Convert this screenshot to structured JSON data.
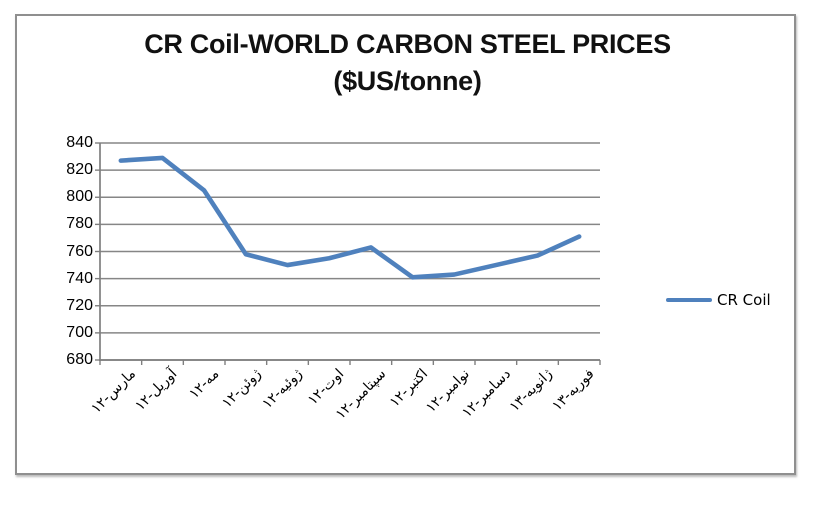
{
  "title": {
    "line1": "CR Coil-WORLD CARBON STEEL PRICES",
    "line2": "($US/tonne)"
  },
  "legend": {
    "label": "CR Coil"
  },
  "colors": {
    "series": "#4f81bd",
    "grid": "#868686",
    "axis": "#7f7f7f",
    "text": "#000000",
    "frame_border": "#8f8f8f"
  },
  "chart_data": {
    "type": "line",
    "title": "CR Coil-WORLD CARBON STEEL PRICES ($US/tonne)",
    "categories": [
      "مارس-۱۲",
      "آوریل-۱۲",
      "مه-۱۲",
      "ژوئن-۱۲",
      "ژوئیه-۱۲",
      "اوت-۱۲",
      "سپتامبر-۱۲",
      "اکتبر-۱۲",
      "نوامبر-۱۲",
      "دسامبر-۱۲",
      "ژانویه-۱۳",
      "فوریه-۱۳"
    ],
    "series": [
      {
        "name": "CR Coil",
        "values": [
          827,
          829,
          805,
          758,
          750,
          755,
          763,
          741,
          743,
          750,
          757,
          771
        ]
      }
    ],
    "ylim": [
      680,
      840
    ],
    "yticks": [
      680,
      700,
      720,
      740,
      760,
      780,
      800,
      820,
      840
    ],
    "ytick_step": 20,
    "xlabel": "",
    "ylabel": "",
    "grid": true,
    "legend_position": "right",
    "x_label_rotation_deg": 45
  }
}
